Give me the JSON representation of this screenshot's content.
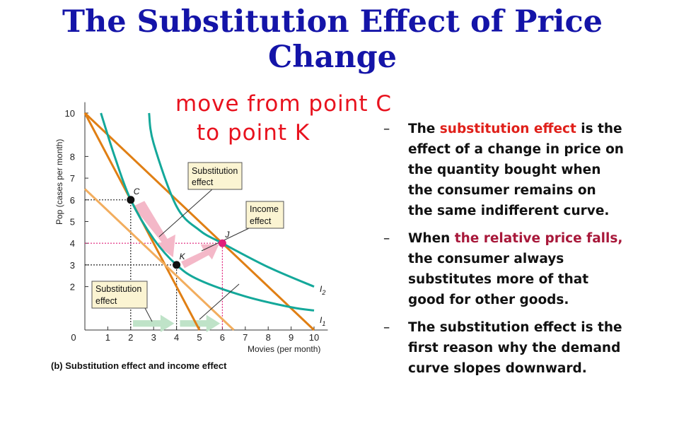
{
  "title": "The Substitution Effect of Price Change",
  "annotation": {
    "line1": "move from point C",
    "line2": "to point K",
    "color": "#e8121e"
  },
  "bullets": [
    {
      "before": "The ",
      "highlight": "substitution effect",
      "after": " is the effect of a change in price on the quantity bought when the consumer remains on the same indifferent curve.",
      "highlight_color": "#e0201a"
    },
    {
      "before": "When ",
      "highlight": "the relative price falls,",
      "after": " the consumer always substitutes more of that good for other goods.",
      "highlight_color": "#a8183a"
    },
    {
      "before": "The substitution effect is the first reason why the demand curve slopes downward.",
      "highlight": "",
      "after": ""
    }
  ],
  "bullet_dash": "–",
  "figure": {
    "caption": "(b) Substitution effect and income effect",
    "xlabel": "Movies (per month)",
    "ylabel": "Pop (cases per month)",
    "x_ticks": [
      "0",
      "1",
      "2",
      "3",
      "4",
      "5",
      "6",
      "7",
      "8",
      "9",
      "10"
    ],
    "y_ticks": [
      "2",
      "3",
      "4",
      "5",
      "6",
      "7",
      "8",
      "10"
    ],
    "y_tick_values": [
      2,
      3,
      4,
      5,
      6,
      7,
      8,
      10
    ],
    "xlim": [
      0,
      10.5
    ],
    "ylim": [
      0,
      10.5
    ],
    "boxes": {
      "subst_top": [
        "Substitution",
        "effect"
      ],
      "income": [
        "Income",
        "effect"
      ],
      "subst_bottom": [
        "Substitution",
        "effect"
      ]
    },
    "points": [
      {
        "label": "C",
        "x": 2,
        "y": 6,
        "color": "#111111"
      },
      {
        "label": "K",
        "x": 4,
        "y": 3,
        "color": "#111111"
      },
      {
        "label": "J",
        "x": 6,
        "y": 4,
        "color": "#e0207a"
      }
    ],
    "curve_labels": {
      "I1": "I",
      "I1_sub": "1",
      "I2": "I",
      "I2_sub": "2"
    },
    "colors": {
      "budget": "#e07f14",
      "budget_light": "#f2ad5e",
      "indiff": "#14a89a",
      "guide_black": "#222222",
      "guide_pink": "#e0207a",
      "arrow_pink": "#f4b8c8",
      "arrow_green": "#bfe3c8"
    }
  },
  "chart_data": {
    "type": "line",
    "series": [
      {
        "values": [
          [
            0,
            10
          ],
          [
            10,
            0
          ]
        ]
      },
      {
        "values": [
          [
            0,
            10
          ],
          [
            5,
            0
          ]
        ]
      },
      {
        "values": [
          [
            0,
            6.5
          ],
          [
            6.5,
            0
          ]
        ]
      },
      {
        "values": [
          [
            0.7,
            10
          ],
          [
            1.3,
            8
          ],
          [
            2,
            6
          ],
          [
            3,
            4.2
          ],
          [
            4,
            3
          ],
          [
            5,
            2.3
          ],
          [
            7,
            1.55
          ],
          [
            9,
            1.05
          ],
          [
            10,
            0.9
          ]
        ]
      },
      {
        "values": [
          [
            2.8,
            10
          ],
          [
            3,
            8.6
          ],
          [
            4,
            5.7
          ],
          [
            5,
            4.6
          ],
          [
            6,
            4
          ],
          [
            8,
            2.9
          ],
          [
            10,
            2
          ]
        ]
      }
    ],
    "xlabel": "Movies (per month)",
    "ylabel": "Pop (cases per month)",
    "xlim": [
      0,
      10.5
    ],
    "ylim": [
      0,
      10.5
    ]
  }
}
